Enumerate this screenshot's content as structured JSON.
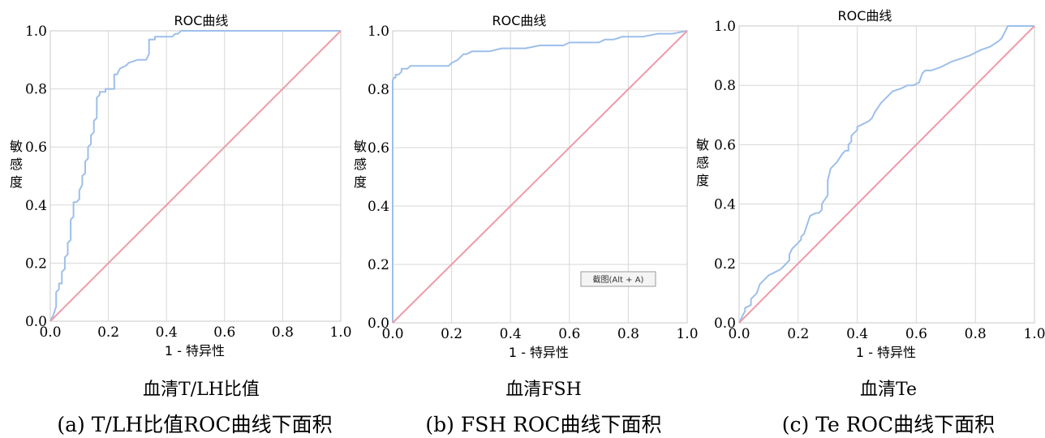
{
  "chart_data": [
    {
      "type": "line",
      "title": "ROC曲线",
      "xlabel": "1 - 特异性",
      "ylabel": "敏感度",
      "xlim": [
        0,
        1
      ],
      "ylim": [
        0,
        1
      ],
      "xticks": [
        "0.0",
        "0.2",
        "0.4",
        "0.6",
        "0.8",
        "1.0"
      ],
      "yticks": [
        "0.0",
        "0.2",
        "0.4",
        "0.6",
        "0.8",
        "1.0"
      ],
      "grid": true,
      "series": [
        {
          "color": "#9dbfea",
          "x": [
            0,
            0.01,
            0.02,
            0.02,
            0.03,
            0.03,
            0.04,
            0.04,
            0.05,
            0.05,
            0.06,
            0.06,
            0.07,
            0.07,
            0.08,
            0.08,
            0.09,
            0.1,
            0.1,
            0.11,
            0.11,
            0.12,
            0.12,
            0.13,
            0.13,
            0.14,
            0.14,
            0.15,
            0.15,
            0.16,
            0.16,
            0.17,
            0.17,
            0.19,
            0.19,
            0.2,
            0.22,
            0.22,
            0.23,
            0.24,
            0.26,
            0.27,
            0.3,
            0.33,
            0.34,
            0.34,
            0.36,
            0.36,
            0.38,
            0.42,
            0.43,
            0.44,
            0.45,
            1.0
          ],
          "y": [
            0,
            0.02,
            0.05,
            0.1,
            0.11,
            0.13,
            0.13,
            0.17,
            0.18,
            0.22,
            0.23,
            0.27,
            0.28,
            0.35,
            0.36,
            0.41,
            0.41,
            0.42,
            0.45,
            0.47,
            0.5,
            0.51,
            0.55,
            0.56,
            0.6,
            0.61,
            0.64,
            0.65,
            0.69,
            0.7,
            0.77,
            0.78,
            0.79,
            0.79,
            0.8,
            0.8,
            0.8,
            0.85,
            0.85,
            0.87,
            0.88,
            0.89,
            0.9,
            0.9,
            0.92,
            0.97,
            0.97,
            0.98,
            0.98,
            0.98,
            0.99,
            0.99,
            1.0,
            1.0
          ]
        },
        {
          "color": "#ef9aaa",
          "x": [
            0,
            1
          ],
          "y": [
            0,
            1
          ]
        }
      ],
      "subtitle": "血清T/LH比值",
      "caption": "(a)  T/LH比值ROC曲线下面积"
    },
    {
      "type": "line",
      "title": "ROC曲线",
      "xlabel": "1 - 特异性",
      "ylabel": "敏感度",
      "xlim": [
        0,
        1
      ],
      "ylim": [
        0,
        1
      ],
      "xticks": [
        "0.0",
        "0.2",
        "0.4",
        "0.6",
        "0.8",
        "1.0"
      ],
      "yticks": [
        "0.0",
        "0.2",
        "0.4",
        "0.6",
        "0.8",
        "1.0"
      ],
      "grid": true,
      "series": [
        {
          "color": "#9dbfea",
          "x": [
            0,
            0,
            0.005,
            0.01,
            0.01,
            0.02,
            0.03,
            0.03,
            0.05,
            0.06,
            0.19,
            0.2,
            0.22,
            0.23,
            0.24,
            0.25,
            0.27,
            0.3,
            0.33,
            0.37,
            0.4,
            0.45,
            0.5,
            0.55,
            0.58,
            0.6,
            0.65,
            0.7,
            0.72,
            0.75,
            0.78,
            0.8,
            0.85,
            0.9,
            0.95,
            1.0
          ],
          "y": [
            0,
            0.83,
            0.84,
            0.84,
            0.85,
            0.85,
            0.86,
            0.87,
            0.87,
            0.88,
            0.88,
            0.89,
            0.9,
            0.91,
            0.92,
            0.92,
            0.93,
            0.93,
            0.93,
            0.94,
            0.94,
            0.94,
            0.95,
            0.95,
            0.95,
            0.96,
            0.96,
            0.96,
            0.97,
            0.97,
            0.98,
            0.98,
            0.98,
            0.99,
            0.99,
            1.0
          ]
        },
        {
          "color": "#ef9aaa",
          "x": [
            0,
            1
          ],
          "y": [
            0,
            1
          ]
        }
      ],
      "annotation": "截图(Alt + A)",
      "subtitle": "血清FSH",
      "caption": "(b)  FSH ROC曲线下面积"
    },
    {
      "type": "line",
      "title": "ROC曲线",
      "xlabel": "1 - 特异性",
      "ylabel": "敏感度",
      "xlim": [
        0,
        1
      ],
      "ylim": [
        0,
        1
      ],
      "xticks": [
        "0.0",
        "0.2",
        "0.4",
        "0.6",
        "0.8",
        "1.0"
      ],
      "yticks": [
        "0.0",
        "0.2",
        "0.4",
        "0.6",
        "0.8",
        "1.0"
      ],
      "grid": true,
      "series": [
        {
          "color": "#9dbfea",
          "x": [
            0,
            0.01,
            0.02,
            0.02,
            0.04,
            0.04,
            0.06,
            0.07,
            0.08,
            0.1,
            0.12,
            0.14,
            0.15,
            0.16,
            0.17,
            0.17,
            0.18,
            0.2,
            0.21,
            0.21,
            0.22,
            0.24,
            0.26,
            0.27,
            0.28,
            0.28,
            0.3,
            0.3,
            0.31,
            0.33,
            0.35,
            0.36,
            0.37,
            0.37,
            0.38,
            0.38,
            0.4,
            0.4,
            0.42,
            0.44,
            0.45,
            0.46,
            0.48,
            0.5,
            0.52,
            0.55,
            0.57,
            0.59,
            0.61,
            0.62,
            0.63,
            0.65,
            0.68,
            0.7,
            0.72,
            0.75,
            0.78,
            0.8,
            0.82,
            0.85,
            0.88,
            0.89,
            0.9,
            0.91,
            1.0
          ],
          "y": [
            0,
            0.02,
            0.04,
            0.05,
            0.06,
            0.08,
            0.1,
            0.13,
            0.14,
            0.16,
            0.17,
            0.18,
            0.19,
            0.2,
            0.21,
            0.23,
            0.25,
            0.27,
            0.28,
            0.29,
            0.3,
            0.36,
            0.37,
            0.37,
            0.38,
            0.4,
            0.43,
            0.48,
            0.52,
            0.54,
            0.57,
            0.58,
            0.58,
            0.6,
            0.61,
            0.63,
            0.65,
            0.66,
            0.67,
            0.68,
            0.69,
            0.71,
            0.74,
            0.76,
            0.78,
            0.79,
            0.8,
            0.8,
            0.81,
            0.84,
            0.85,
            0.85,
            0.86,
            0.87,
            0.88,
            0.89,
            0.9,
            0.91,
            0.92,
            0.93,
            0.95,
            0.96,
            0.98,
            1.0,
            1.0
          ]
        },
        {
          "color": "#ef9aaa",
          "x": [
            0,
            1
          ],
          "y": [
            0,
            1
          ]
        }
      ],
      "subtitle": "血清Te",
      "caption": "(c)  Te ROC曲线下面积"
    }
  ]
}
